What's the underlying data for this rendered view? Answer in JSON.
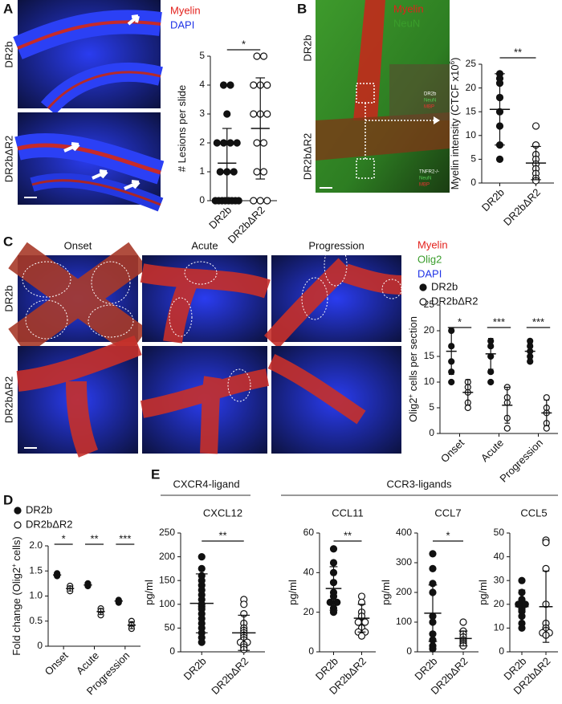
{
  "figure": {
    "panel_labels": [
      "A",
      "B",
      "C",
      "D",
      "E"
    ],
    "a": {
      "rows": [
        "DR2b",
        "DR2bΔR2"
      ],
      "legend": [
        "Myelin",
        "DAPI"
      ]
    },
    "b": {
      "rows": [
        "DR2b",
        "DR2bΔR2"
      ],
      "legend": [
        "Myelin",
        "NeuN"
      ],
      "inset_top": [
        "DR2b",
        "NeuN",
        "MBP"
      ],
      "inset_bottom": [
        "TNFR2-/-",
        "NeuN",
        "MBP"
      ]
    },
    "c": {
      "columns": [
        "Onset",
        "Acute",
        "Progression"
      ],
      "rows": [
        "DR2b",
        "DR2bΔR2"
      ],
      "legend": [
        "Myelin",
        "Olig2",
        "DAPI"
      ]
    },
    "e": {
      "groups": [
        "CXCR4-ligand",
        "CCR3-ligands"
      ]
    }
  },
  "chart_data": [
    {
      "type": "dot",
      "y_label": "# Lesions per slide",
      "categories": [
        "DR2b",
        "DR2bΔR2"
      ],
      "markers": [
        "filled",
        "open"
      ],
      "values": [
        [
          0,
          0,
          0,
          0,
          0,
          0,
          0,
          0,
          1,
          1,
          1,
          2,
          2,
          2,
          2,
          3,
          4,
          4
        ],
        [
          0,
          0,
          0,
          1,
          1,
          2,
          2,
          3,
          3,
          3,
          4,
          4,
          4,
          5,
          5
        ]
      ],
      "means": [
        1.3,
        2.5
      ],
      "sds": [
        1.2,
        1.75
      ],
      "significance": [
        "*"
      ],
      "ylim": [
        0,
        5
      ],
      "yticks": [
        0,
        1,
        2,
        3,
        4,
        5
      ]
    },
    {
      "type": "dot",
      "y_label": "Myelin intensity (CTCF x10",
      "y_label_sup": "6",
      "y_label_tail": ")",
      "categories": [
        "DR2b",
        "DR2bΔR2"
      ],
      "markers": [
        "filled",
        "open"
      ],
      "values": [
        [
          23,
          22,
          21,
          18,
          15,
          12,
          8,
          5
        ],
        [
          12,
          8,
          6,
          5,
          4,
          3,
          2,
          1,
          0.5
        ]
      ],
      "means": [
        15.5,
        4.2
      ],
      "sds": [
        7.5,
        3.5
      ],
      "significance": [
        "**"
      ],
      "ylim": [
        0,
        25
      ],
      "yticks": [
        0,
        5,
        10,
        15,
        20,
        25
      ]
    },
    {
      "type": "dot",
      "y_label": "Olig2",
      "y_label_sup": "+",
      "y_label_tail": " cells per section",
      "categories": [
        "Onset",
        "Acute",
        "Progression"
      ],
      "series": [
        {
          "name": "DR2b",
          "marker": "filled",
          "values": [
            [
              20,
              17,
              14,
              12,
              10
            ],
            [
              18,
              17,
              15,
              12,
              10
            ],
            [
              18,
              17,
              16,
              15,
              14
            ]
          ],
          "means": [
            16,
            15.5,
            16
          ],
          "sds": [
            4.5,
            3,
            1.5
          ]
        },
        {
          "name": "DR2bΔR2",
          "marker": "open",
          "values": [
            [
              10,
              9,
              8,
              6,
              5
            ],
            [
              9,
              7,
              6,
              3,
              1
            ],
            [
              7,
              5,
              4,
              2,
              1
            ]
          ],
          "means": [
            8,
            5.5,
            4
          ],
          "sds": [
            2.5,
            3.5,
            2.5
          ]
        }
      ],
      "significance": [
        "*",
        "***",
        "***"
      ],
      "ylim": [
        0,
        25
      ],
      "yticks": [
        0,
        5,
        10,
        15,
        20,
        25
      ]
    },
    {
      "type": "dot",
      "y_label": "Fold change (Olig2",
      "y_label_sup": "+",
      "y_label_tail": " cells)",
      "categories": [
        "Onset",
        "Acute",
        "Progression"
      ],
      "series": [
        {
          "name": "DR2b",
          "marker": "filled",
          "values": [
            [
              1.45,
              1.42,
              1.4
            ],
            [
              1.25,
              1.22,
              1.2
            ],
            [
              0.92,
              0.9,
              0.87
            ]
          ],
          "means": [
            1.42,
            1.22,
            0.9
          ],
          "sds": [
            0.03,
            0.03,
            0.03
          ]
        },
        {
          "name": "DR2bΔR2",
          "marker": "open",
          "values": [
            [
              1.2,
              1.15,
              1.1
            ],
            [
              0.75,
              0.7,
              0.62
            ],
            [
              0.5,
              0.42,
              0.35
            ]
          ],
          "means": [
            1.15,
            0.69,
            0.42
          ],
          "sds": [
            0.05,
            0.06,
            0.07
          ]
        }
      ],
      "significance": [
        "*",
        "**",
        "***"
      ],
      "ylim": [
        0,
        2
      ],
      "yticks": [
        0,
        0.5,
        {
          "value": 1,
          "label": "1.0"
        },
        1.5,
        {
          "value": 2,
          "label": "2.0"
        }
      ]
    },
    {
      "type": "dot",
      "title": "CXCL12",
      "y_label": "pg/ml",
      "categories": [
        "DR2b",
        "DR2bΔR2"
      ],
      "markers": [
        "filled",
        "open"
      ],
      "values": [
        [
          200,
          175,
          160,
          150,
          140,
          130,
          120,
          110,
          100,
          95,
          90,
          80,
          70,
          60,
          50,
          40,
          30,
          20
        ],
        [
          110,
          100,
          80,
          60,
          50,
          45,
          40,
          35,
          30,
          25,
          20,
          20,
          15,
          10,
          5
        ]
      ],
      "means": [
        102,
        40
      ],
      "sds": [
        62,
        37
      ],
      "significance": [
        "**"
      ],
      "ylim": [
        0,
        250
      ],
      "yticks": [
        0,
        50,
        100,
        150,
        200,
        250
      ]
    },
    {
      "type": "dot",
      "title": "CCL11",
      "y_label": "pg/ml",
      "categories": [
        "DR2b",
        "DR2bΔR2"
      ],
      "markers": [
        "filled",
        "open"
      ],
      "values": [
        [
          52,
          45,
          40,
          35,
          30,
          28,
          25,
          25,
          22,
          20
        ],
        [
          28,
          25,
          20,
          18,
          15,
          15,
          12,
          10,
          10,
          8
        ]
      ],
      "means": [
        32,
        17
      ],
      "sds": [
        11,
        7
      ],
      "significance": [
        "**"
      ],
      "ylim": [
        0,
        60
      ],
      "yticks": [
        0,
        20,
        40,
        60
      ]
    },
    {
      "type": "dot",
      "title": "CCL7",
      "y_label": "pg/ml",
      "categories": [
        "DR2b",
        "DR2bΔR2"
      ],
      "markers": [
        "filled",
        "open"
      ],
      "values": [
        [
          330,
          280,
          230,
          200,
          120,
          100,
          60,
          40,
          20,
          10
        ],
        [
          100,
          70,
          60,
          50,
          40,
          35,
          30,
          25,
          20
        ]
      ],
      "means": [
        130,
        45
      ],
      "sds": [
        95,
        25
      ],
      "significance": [
        "*"
      ],
      "ylim": [
        0,
        400
      ],
      "yticks": [
        0,
        100,
        200,
        300,
        400
      ]
    },
    {
      "type": "dot",
      "title": "CCL5",
      "y_label": "pg/ml",
      "categories": [
        "DR2b",
        "DR2bΔR2"
      ],
      "markers": [
        "filled",
        "open"
      ],
      "values": [
        [
          30,
          25,
          22,
          20,
          20,
          18,
          17,
          15,
          12,
          10
        ],
        [
          47,
          46,
          35,
          20,
          12,
          10,
          9,
          8,
          8,
          7
        ]
      ],
      "means": [
        19,
        19
      ],
      "sds": [
        7,
        15
      ],
      "ylim": [
        0,
        50
      ],
      "yticks": [
        0,
        10,
        20,
        30,
        40,
        50
      ]
    }
  ]
}
